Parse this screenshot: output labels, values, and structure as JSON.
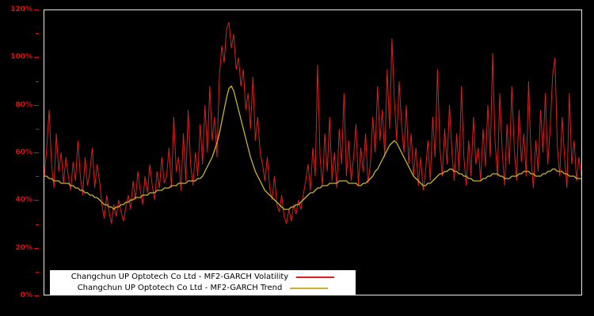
{
  "colors": {
    "background": "#000000",
    "frame": "#e9e9e9",
    "axis_label": "#dd1111",
    "volatility_line": "#dc1e1e",
    "trend_line": "#c8b432",
    "legend_bg": "#ffffff",
    "legend_text": "#000000"
  },
  "legend": {
    "items": [
      {
        "label": "Changchun UP Optotech Co Ltd - MF2-GARCH Volatility",
        "color": "#dc1e1e"
      },
      {
        "label": "Changchun UP Optotech Co Ltd - MF2-GARCH Trend",
        "color": "#c8b432"
      }
    ]
  },
  "chart_data": {
    "type": "line",
    "title": "",
    "xlabel": "",
    "ylabel": "",
    "ylim": [
      0,
      120
    ],
    "y_unit": "%",
    "y_ticks_labeled": [
      "0%",
      "20%",
      "40%",
      "60%",
      "80%",
      "100%",
      "120%"
    ],
    "y_tick_step_minor": 10,
    "grid": false,
    "legend_position": "bottom-left-inside",
    "x_axis_labels": "none (unlabeled time axis)",
    "series": [
      {
        "name": "Changchun UP Optotech Co Ltd - MF2-GARCH Volatility",
        "color": "#dc1e1e",
        "values": [
          50,
          62,
          78,
          55,
          45,
          68,
          52,
          60,
          47,
          58,
          50,
          44,
          56,
          48,
          65,
          50,
          42,
          58,
          46,
          52,
          62,
          45,
          55,
          48,
          38,
          32,
          42,
          35,
          30,
          38,
          33,
          40,
          35,
          31,
          37,
          42,
          36,
          48,
          40,
          52,
          44,
          38,
          50,
          43,
          55,
          46,
          40,
          52,
          45,
          58,
          47,
          50,
          62,
          45,
          75,
          52,
          58,
          44,
          68,
          48,
          78,
          55,
          46,
          60,
          50,
          72,
          55,
          80,
          60,
          88,
          65,
          75,
          58,
          92,
          105,
          98,
          112,
          115,
          104,
          110,
          95,
          100,
          88,
          95,
          78,
          85,
          70,
          92,
          65,
          75,
          60,
          55,
          48,
          58,
          45,
          40,
          50,
          38,
          35,
          42,
          33,
          30,
          36,
          31,
          38,
          34,
          40,
          36,
          42,
          48,
          55,
          44,
          62,
          50,
          97,
          58,
          46,
          68,
          52,
          75,
          48,
          60,
          45,
          70,
          55,
          85,
          50,
          65,
          48,
          58,
          72,
          46,
          62,
          52,
          68,
          47,
          55,
          75,
          60,
          88,
          65,
          78,
          58,
          95,
          70,
          108,
          82,
          65,
          90,
          72,
          60,
          80,
          55,
          68,
          50,
          62,
          46,
          58,
          44,
          52,
          65,
          48,
          75,
          58,
          95,
          62,
          50,
          70,
          55,
          80,
          60,
          48,
          68,
          52,
          88,
          58,
          46,
          65,
          50,
          75,
          55,
          62,
          48,
          70,
          54,
          80,
          58,
          102,
          65,
          50,
          85,
          60,
          46,
          72,
          55,
          88,
          62,
          48,
          78,
          56,
          68,
          50,
          90,
          58,
          45,
          65,
          52,
          78,
          60,
          85,
          55,
          70,
          92,
          100,
          62,
          50,
          75,
          58,
          45,
          85,
          55,
          65,
          48,
          58,
          50
        ]
      },
      {
        "name": "Changchun UP Optotech Co Ltd - MF2-GARCH Trend",
        "color": "#c8b432",
        "values": [
          50,
          50,
          49,
          49,
          48,
          48,
          48,
          47,
          47,
          47,
          47,
          46,
          46,
          45,
          45,
          44,
          44,
          43,
          43,
          42,
          42,
          41,
          41,
          40,
          39,
          38,
          38,
          37,
          37,
          36,
          37,
          37,
          38,
          38,
          39,
          39,
          40,
          40,
          41,
          41,
          41,
          42,
          42,
          42,
          43,
          43,
          43,
          44,
          44,
          44,
          45,
          45,
          45,
          46,
          46,
          46,
          47,
          47,
          47,
          47,
          48,
          48,
          48,
          48,
          49,
          49,
          50,
          52,
          54,
          56,
          58,
          61,
          64,
          68,
          73,
          78,
          83,
          87,
          88,
          86,
          82,
          78,
          74,
          70,
          66,
          62,
          58,
          55,
          52,
          50,
          48,
          46,
          44,
          43,
          42,
          41,
          40,
          39,
          38,
          37,
          36,
          36,
          36,
          37,
          37,
          38,
          38,
          39,
          40,
          41,
          42,
          43,
          43,
          44,
          45,
          45,
          46,
          46,
          46,
          47,
          47,
          47,
          47,
          48,
          48,
          48,
          48,
          47,
          47,
          47,
          47,
          46,
          46,
          47,
          47,
          48,
          49,
          50,
          52,
          53,
          55,
          57,
          59,
          61,
          63,
          64,
          65,
          64,
          62,
          60,
          58,
          56,
          54,
          52,
          50,
          49,
          48,
          47,
          46,
          46,
          47,
          47,
          48,
          49,
          50,
          51,
          51,
          52,
          52,
          53,
          53,
          52,
          52,
          51,
          51,
          50,
          50,
          49,
          49,
          48,
          48,
          48,
          48,
          49,
          49,
          50,
          50,
          51,
          51,
          51,
          50,
          50,
          49,
          49,
          49,
          50,
          50,
          50,
          51,
          51,
          52,
          52,
          52,
          51,
          51,
          50,
          50,
          50,
          51,
          51,
          52,
          52,
          53,
          53,
          52,
          52,
          52,
          51,
          51,
          50,
          50,
          50,
          49,
          49,
          49
        ]
      }
    ]
  }
}
